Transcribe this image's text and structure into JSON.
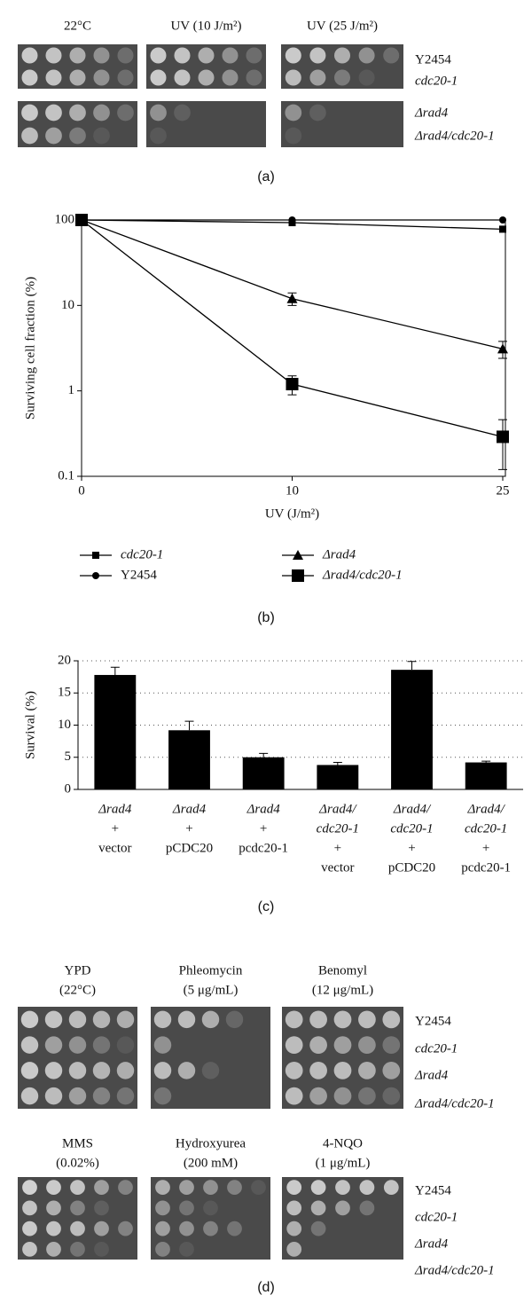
{
  "panel_a": {
    "conditions": [
      "22°C",
      "UV (10 J/m²)",
      "UV (25 J/m²)"
    ],
    "strains": [
      "Y2454",
      "cdc20-1",
      "Δrad4",
      "Δrad4/cdc20-1"
    ],
    "caption": "(a)"
  },
  "chart_data": [
    {
      "type": "line",
      "caption": "(b)",
      "x_label": "UV (J/m²)",
      "y_label": "Surviving cell fraction (%)",
      "categories": [
        "0",
        "10",
        "25"
      ],
      "y_scale": "log",
      "ylim": [
        0.1,
        100
      ],
      "yticks": [
        0.1,
        1,
        10,
        100
      ],
      "series": [
        {
          "name": "cdc20-1",
          "color": "#000000",
          "marker": "square-small",
          "values": [
            100,
            93,
            78
          ],
          "errors": [
            null,
            null,
            null
          ]
        },
        {
          "name": "Y2454",
          "color": "#000000",
          "marker": "circle",
          "values": [
            100,
            100,
            100
          ],
          "errors": [
            null,
            null,
            null
          ]
        },
        {
          "name": "Δrad4",
          "color": "#000000",
          "marker": "triangle",
          "values": [
            100,
            12,
            3.1
          ],
          "errors": [
            null,
            2,
            0.7
          ]
        },
        {
          "name": "Δrad4/cdc20-1",
          "color": "#000000",
          "marker": "square-large",
          "values": [
            100,
            1.2,
            0.29
          ],
          "errors": [
            null,
            0.3,
            0.17
          ]
        }
      ]
    },
    {
      "type": "bar",
      "caption": "(c)",
      "y_label": "Survival (%)",
      "color": "#000000",
      "grid": true,
      "ylim": [
        0,
        20
      ],
      "yticks": [
        0,
        5,
        10,
        15,
        20
      ],
      "categories": [
        [
          "Δrad4",
          "+",
          "vector"
        ],
        [
          "Δrad4",
          "+",
          "pCDC20"
        ],
        [
          "Δrad4",
          "+",
          "pcdc20-1"
        ],
        [
          "Δrad4/",
          "cdc20-1",
          "+",
          "vector"
        ],
        [
          "Δrad4/",
          "cdc20-1",
          "+",
          "pCDC20"
        ],
        [
          "Δrad4/",
          "cdc20-1",
          "+",
          "pcdc20-1"
        ]
      ],
      "values": [
        17.8,
        9.2,
        5.0,
        3.8,
        18.6,
        4.2
      ],
      "errors": [
        1.2,
        1.4,
        0.6,
        0.4,
        1.3,
        0.2
      ]
    }
  ],
  "panel_d": {
    "rows": [
      {
        "conditions": [
          [
            "YPD",
            "(22°C)"
          ],
          [
            "Phleomycin",
            "(5 μg/mL)"
          ],
          [
            "Benomyl",
            "(12 μg/mL)"
          ]
        ],
        "strains": [
          "Y2454",
          "cdc20-1",
          "Δrad4",
          "Δrad4/cdc20-1"
        ]
      },
      {
        "conditions": [
          [
            "MMS",
            "(0.02%)"
          ],
          [
            "Hydroxyurea",
            "(200 mM)"
          ],
          [
            "4-NQO",
            "(1 μg/mL)"
          ]
        ],
        "strains": [
          "Y2454",
          "cdc20-1",
          "Δrad4",
          "Δrad4/cdc20-1"
        ]
      }
    ],
    "caption": "(d)"
  }
}
